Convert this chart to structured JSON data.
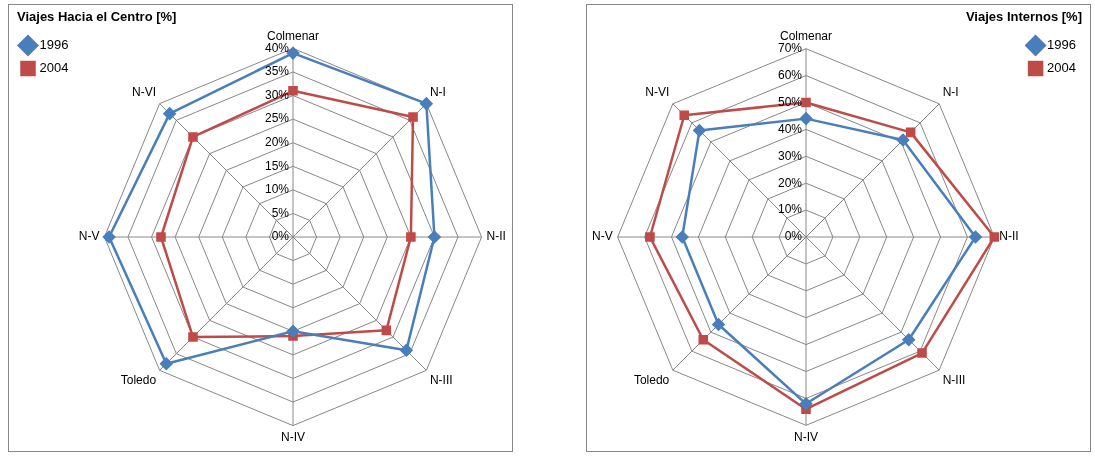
{
  "chart_data": [
    {
      "type": "radar",
      "title": "Viajes Hacia el Centro [%]",
      "categories": [
        "Colmenar",
        "N-I",
        "N-II",
        "N-III",
        "N-IV",
        "Toledo",
        "N-V",
        "N-VI"
      ],
      "series": [
        {
          "name": "1996",
          "color": "#4a7ebb",
          "marker": "diamond",
          "values": [
            39,
            40,
            30,
            34,
            20,
            38,
            39,
            37
          ]
        },
        {
          "name": "2004",
          "color": "#be4b48",
          "marker": "square",
          "values": [
            31,
            36,
            25,
            28,
            21,
            30,
            28,
            30
          ]
        }
      ],
      "ylim": [
        0,
        40
      ],
      "yticks": [
        {
          "value": 0,
          "label": "0%"
        },
        {
          "value": 5,
          "label": "5%"
        },
        {
          "value": 10,
          "label": "10%"
        },
        {
          "value": 15,
          "label": "15%"
        },
        {
          "value": 20,
          "label": "20%"
        },
        {
          "value": 25,
          "label": "25%"
        },
        {
          "value": 30,
          "label": "30%"
        },
        {
          "value": 35,
          "label": "35%"
        },
        {
          "value": 40,
          "label": "40%"
        }
      ],
      "grid": true,
      "legend": "top left"
    },
    {
      "type": "radar",
      "title": "Viajes Internos [%]",
      "categories": [
        "Colmenar",
        "N-I",
        "N-II",
        "N-III",
        "N-IV",
        "Toledo",
        "N-V",
        "N-VI"
      ],
      "series": [
        {
          "name": "1996",
          "color": "#4a7ebb",
          "marker": "diamond",
          "values": [
            44,
            51,
            63,
            54,
            62,
            46,
            46,
            56
          ]
        },
        {
          "name": "2004",
          "color": "#be4b48",
          "marker": "square",
          "values": [
            50,
            55,
            70,
            61,
            64,
            54,
            58,
            64
          ]
        }
      ],
      "ylim": [
        0,
        70
      ],
      "yticks": [
        {
          "value": 0,
          "label": "0%"
        },
        {
          "value": 10,
          "label": "10%"
        },
        {
          "value": 20,
          "label": "20%"
        },
        {
          "value": 30,
          "label": "30%"
        },
        {
          "value": 40,
          "label": "40%"
        },
        {
          "value": 50,
          "label": "50%"
        },
        {
          "value": 60,
          "label": "60%"
        },
        {
          "value": 70,
          "label": "70%"
        }
      ],
      "grid": true,
      "legend": "top right"
    }
  ]
}
